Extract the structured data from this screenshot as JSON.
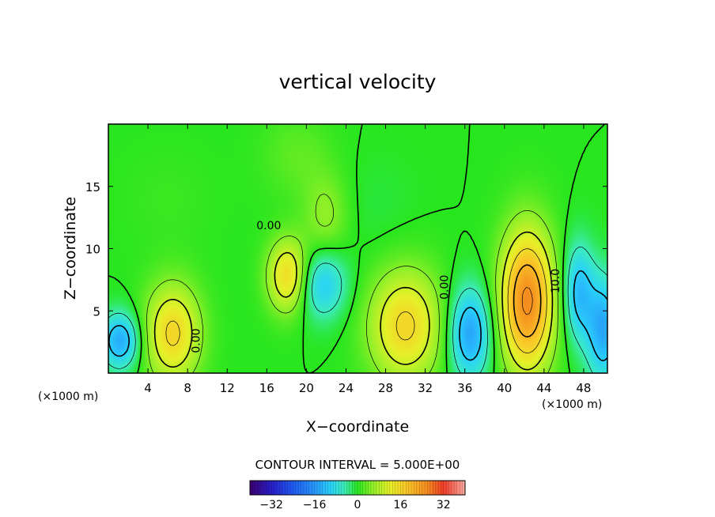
{
  "chart_data": {
    "type": "heatmap",
    "title": "vertical velocity",
    "xlabel": "X−coordinate",
    "ylabel": "Z−coordinate",
    "x_unit_left": "(×1000 m)",
    "x_unit_right": "(×1000 m)",
    "xlim": [
      0,
      50.4
    ],
    "ylim": [
      0,
      20
    ],
    "xticks": [
      4,
      8,
      12,
      16,
      20,
      24,
      28,
      32,
      36,
      40,
      44,
      48
    ],
    "yticks": [
      5,
      10,
      15
    ],
    "contour_interval_label": "CONTOUR INTERVAL = 5.000E+00",
    "contour_labels": [
      {
        "text": "0.00",
        "x": 8.9,
        "y": 2.6,
        "rot": -90
      },
      {
        "text": "0.00",
        "x": 16.2,
        "y": 11.8,
        "rot": 0
      },
      {
        "text": "0.00",
        "x": 34.0,
        "y": 6.9,
        "rot": -90
      },
      {
        "text": "10.0",
        "x": 45.2,
        "y": 7.4,
        "rot": -90
      }
    ],
    "blobs": [
      {
        "x": 1.2,
        "y": 2.6,
        "sx": 1.4,
        "sy": 1.6,
        "v": -14
      },
      {
        "x": 6.5,
        "y": 3.2,
        "sx": 2.0,
        "sy": 2.8,
        "v": 16
      },
      {
        "x": 18.2,
        "y": 7.8,
        "sx": 1.5,
        "sy": 2.1,
        "v": 16
      },
      {
        "x": 21.5,
        "y": 7.2,
        "sx": 1.8,
        "sy": 2.0,
        "v": -11
      },
      {
        "x": 22.0,
        "y": 12.5,
        "sx": 1.6,
        "sy": 2.5,
        "v": 6
      },
      {
        "x": 19.0,
        "y": 17.5,
        "sx": 2.5,
        "sy": 2.5,
        "v": 3
      },
      {
        "x": 30.0,
        "y": 3.8,
        "sx": 2.6,
        "sy": 3.2,
        "v": 16
      },
      {
        "x": 36.5,
        "y": 3.2,
        "sx": 1.5,
        "sy": 2.6,
        "v": -15
      },
      {
        "x": 42.3,
        "y": 5.8,
        "sx": 1.9,
        "sy": 4.0,
        "v": 26
      },
      {
        "x": 47.5,
        "y": 6.5,
        "sx": 1.1,
        "sy": 2.8,
        "v": -12
      },
      {
        "x": 50.0,
        "y": 3.5,
        "sx": 1.2,
        "sy": 3.0,
        "v": -14
      },
      {
        "x": 27.0,
        "y": 13.0,
        "sx": 3.0,
        "sy": 3.0,
        "v": -1
      },
      {
        "x": 6.0,
        "y": 14.0,
        "sx": 3.5,
        "sy": 3.0,
        "v": 1
      }
    ],
    "colorbar": {
      "range": [
        -40,
        40
      ],
      "ticks": [
        -32,
        -16,
        0,
        16,
        32
      ],
      "tick_labels": [
        "−32",
        "−16",
        "0",
        "16",
        "32"
      ]
    }
  }
}
